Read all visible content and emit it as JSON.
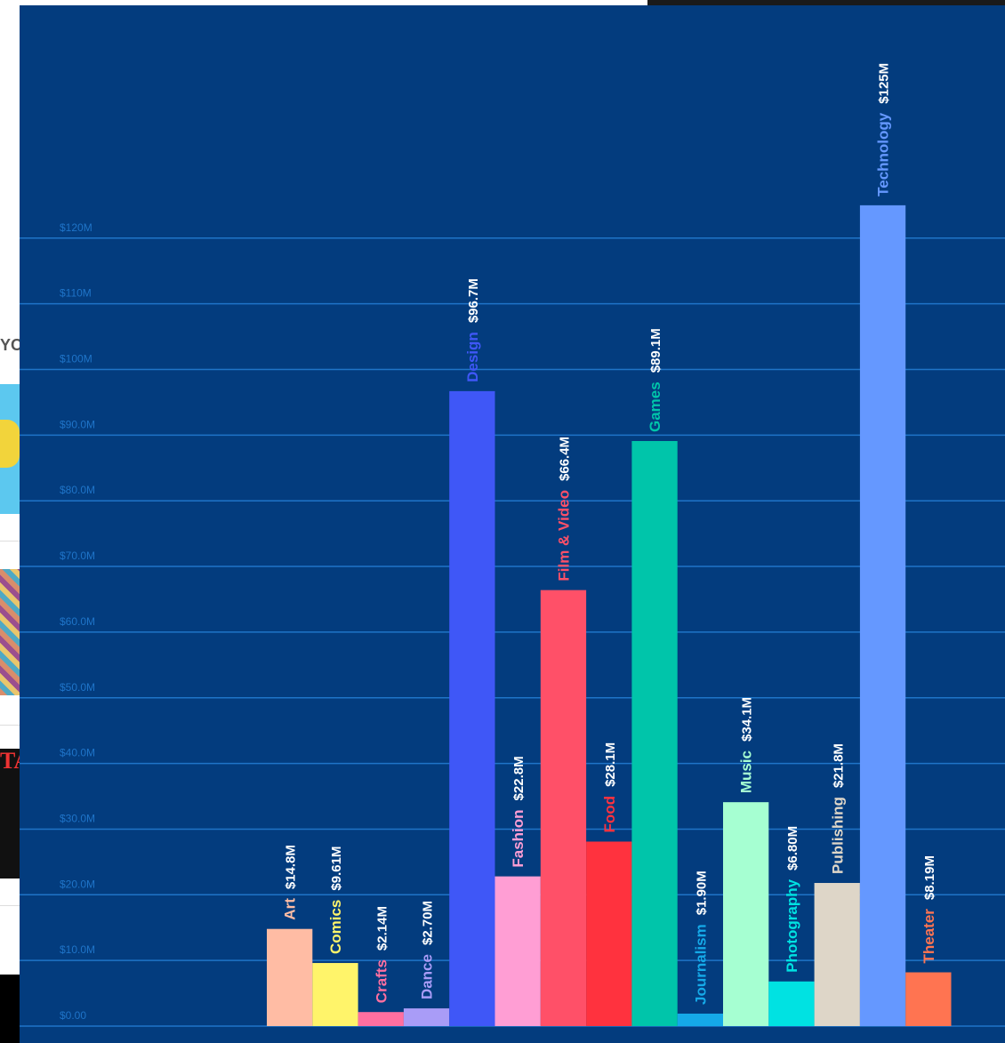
{
  "page": {
    "left_fragment_text": "YO",
    "left_thumb_text": "TAROT"
  },
  "chart_data": {
    "type": "bar",
    "title": "",
    "xlabel": "",
    "ylabel": "",
    "ylim": [
      0,
      125
    ],
    "grid": true,
    "tick_values": [
      0,
      10,
      20,
      30,
      40,
      50,
      60,
      70,
      80,
      90,
      100,
      110,
      120
    ],
    "tick_labels": [
      "$0.00",
      "$10.0M",
      "$20.0M",
      "$30.0M",
      "$40.0M",
      "$50.0M",
      "$60.0M",
      "$70.0M",
      "$80.0M",
      "$90.0M",
      "$100M",
      "$110M",
      "$120M"
    ],
    "categories": [
      "Art",
      "Comics",
      "Crafts",
      "Dance",
      "Design",
      "Fashion",
      "Film & Video",
      "Food",
      "Games",
      "Journalism",
      "Music",
      "Photography",
      "Publishing",
      "Technology",
      "Theater"
    ],
    "values": [
      14.8,
      9.61,
      2.14,
      2.7,
      96.7,
      22.8,
      66.4,
      28.1,
      89.1,
      1.9,
      34.1,
      6.8,
      21.8,
      125,
      8.19
    ],
    "value_labels": [
      "$14.8M",
      "$9.61M",
      "$2.14M",
      "$2.70M",
      "$96.7M",
      "$22.8M",
      "$66.4M",
      "$28.1M",
      "$89.1M",
      "$1.90M",
      "$34.1M",
      "$6.80M",
      "$21.8M",
      "$125M",
      "$8.19M"
    ],
    "colors": [
      "#ffbca4",
      "#fff46a",
      "#ff6fa0",
      "#a99cf7",
      "#3f57f7",
      "#ff9ed4",
      "#ff5068",
      "#ff323e",
      "#00c5aa",
      "#15a9e8",
      "#a6ffd2",
      "#00e2e2",
      "#ded6c8",
      "#6598ff",
      "#ff7451"
    ],
    "label_colors": [
      "#ffbca4",
      "#fff46a",
      "#ff6fa0",
      "#a99cf7",
      "#3f57f7",
      "#ff9ed4",
      "#ff5068",
      "#ff323e",
      "#00c5aa",
      "#15a9e8",
      "#a6ffd2",
      "#00e2e2",
      "#ded6c8",
      "#6598ff",
      "#ff7451"
    ],
    "axis_color": "#1f74c8",
    "background_color": "#033c7e"
  }
}
